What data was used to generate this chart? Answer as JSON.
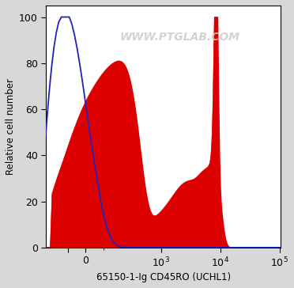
{
  "xlabel": "65150-1-Ig CD45RO (UCHL1)",
  "ylabel": "Relative cell number",
  "ylim": [
    0,
    105
  ],
  "yticks": [
    0,
    20,
    40,
    60,
    80,
    100
  ],
  "watermark": "WWW.PTGLAB.COM",
  "blue_color": "#2222bb",
  "red_color": "#dd0000",
  "bg_color": "#ffffff",
  "fig_bg": "#d8d8d8",
  "linthresh": 150,
  "linscale": 0.4
}
